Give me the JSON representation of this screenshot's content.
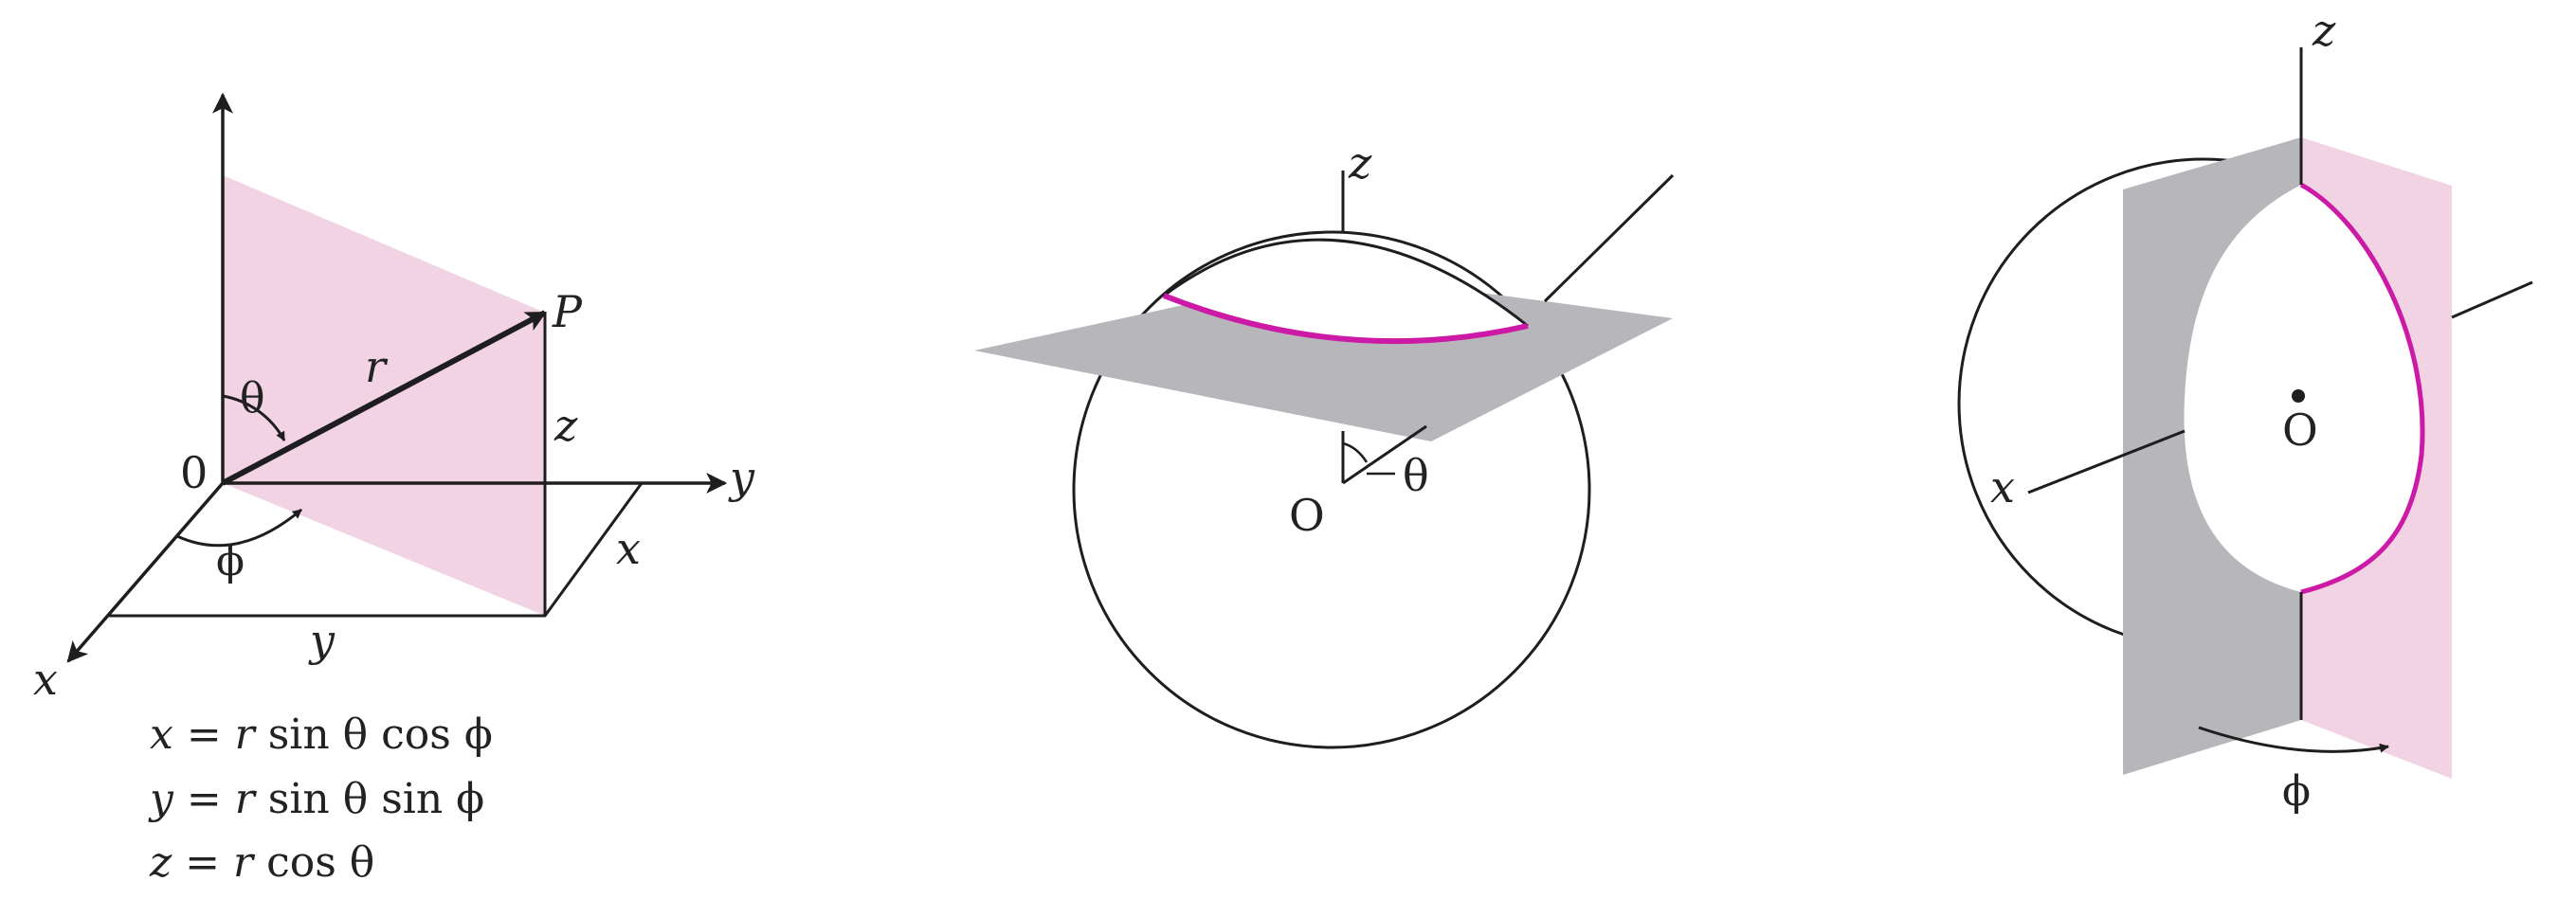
{
  "colors": {
    "pink": "#f2d3e3",
    "gray": "#b7b7bb",
    "magenta": "#cc1aa6",
    "ink": "#1e1e1e"
  },
  "figure1": {
    "origin_label": "0",
    "point_label": "P",
    "radius_label": "r",
    "theta_label": "θ",
    "phi_label": "ϕ",
    "z_label": "z",
    "x_side_label": "x",
    "y_axis_label": "y",
    "y_side_label": "y",
    "x_axis_label": "x",
    "formulas": {
      "x": {
        "lhs": "x",
        "rest": " = ",
        "r": "r",
        "expr": " sin θ cos ϕ"
      },
      "y": {
        "lhs": "y",
        "rest": " = ",
        "r": "r",
        "expr": " sin θ sin ϕ"
      },
      "z": {
        "lhs": "z",
        "rest": " = ",
        "r": "r",
        "expr": " cos θ"
      }
    }
  },
  "figure2": {
    "z_label": "z",
    "origin_label": "O",
    "theta_label": "θ"
  },
  "figure3": {
    "z_label": "z",
    "x_label": "x",
    "origin_label": "O",
    "phi_label": "ϕ"
  }
}
